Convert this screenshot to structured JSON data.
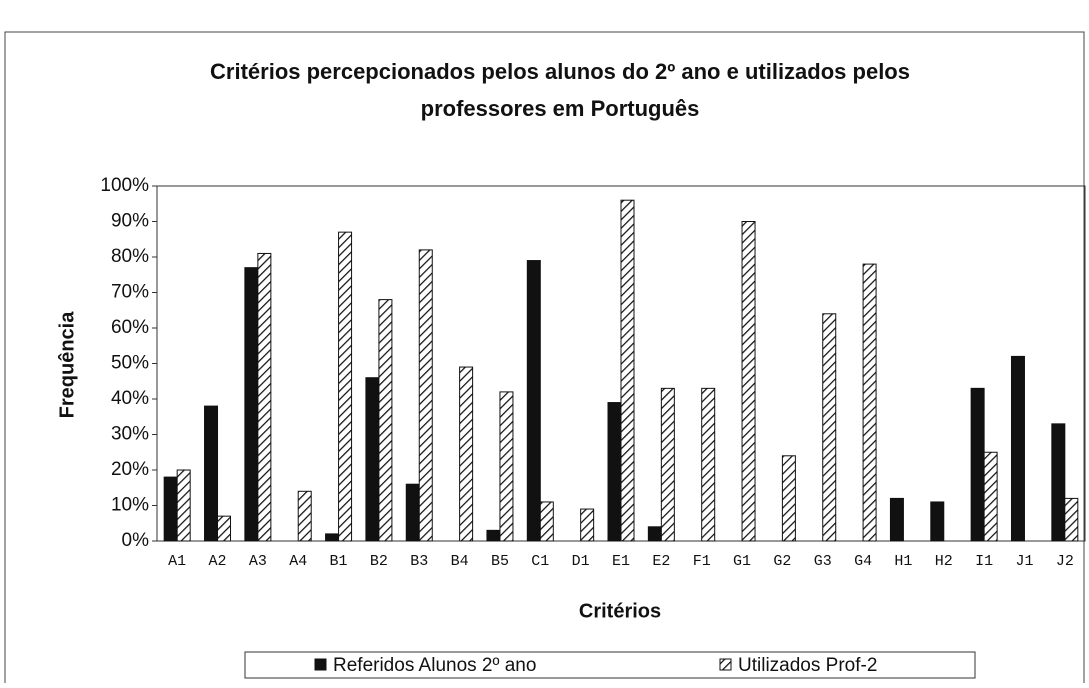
{
  "chart_data": {
    "type": "bar",
    "title": [
      "Critérios percepcionados pelos alunos do 2º ano e utilizados pelos",
      "professores em Português"
    ],
    "x_label": "Critérios",
    "y_label": "Frequência",
    "categories": [
      "A1",
      "A2",
      "A3",
      "A4",
      "B1",
      "B2",
      "B3",
      "B4",
      "B5",
      "C1",
      "D1",
      "E1",
      "E2",
      "F1",
      "G1",
      "G2",
      "G3",
      "G4",
      "H1",
      "H2",
      "I1",
      "J1",
      "J2"
    ],
    "series": [
      {
        "name": "Referidos Alunos 2º ano",
        "color": "#111111",
        "hatch": false,
        "values": [
          18,
          38,
          77,
          0,
          2,
          46,
          16,
          0,
          3,
          79,
          0,
          39,
          4,
          0,
          0,
          0,
          0,
          0,
          12,
          11,
          43,
          52,
          33
        ]
      },
      {
        "name": "Utilizados Prof-2",
        "color": "#111111",
        "hatch": true,
        "values": [
          20,
          7,
          81,
          14,
          87,
          68,
          82,
          49,
          42,
          11,
          9,
          96,
          43,
          43,
          90,
          24,
          64,
          78,
          0,
          0,
          25,
          0,
          12
        ]
      }
    ],
    "ylim": [
      0,
      100
    ],
    "yticks": [
      {
        "value": 0,
        "label": "0%"
      },
      {
        "value": 10,
        "label": "10%"
      },
      {
        "value": 20,
        "label": "20%"
      },
      {
        "value": 30,
        "label": "30%"
      },
      {
        "value": 40,
        "label": "40%"
      },
      {
        "value": 50,
        "label": "50%"
      },
      {
        "value": 60,
        "label": "60%"
      },
      {
        "value": 70,
        "label": "70%"
      },
      {
        "value": 80,
        "label": "80%"
      },
      {
        "value": 90,
        "label": "90%"
      },
      {
        "value": 100,
        "label": "100%"
      }
    ],
    "grid": false,
    "legend": "bottom"
  }
}
